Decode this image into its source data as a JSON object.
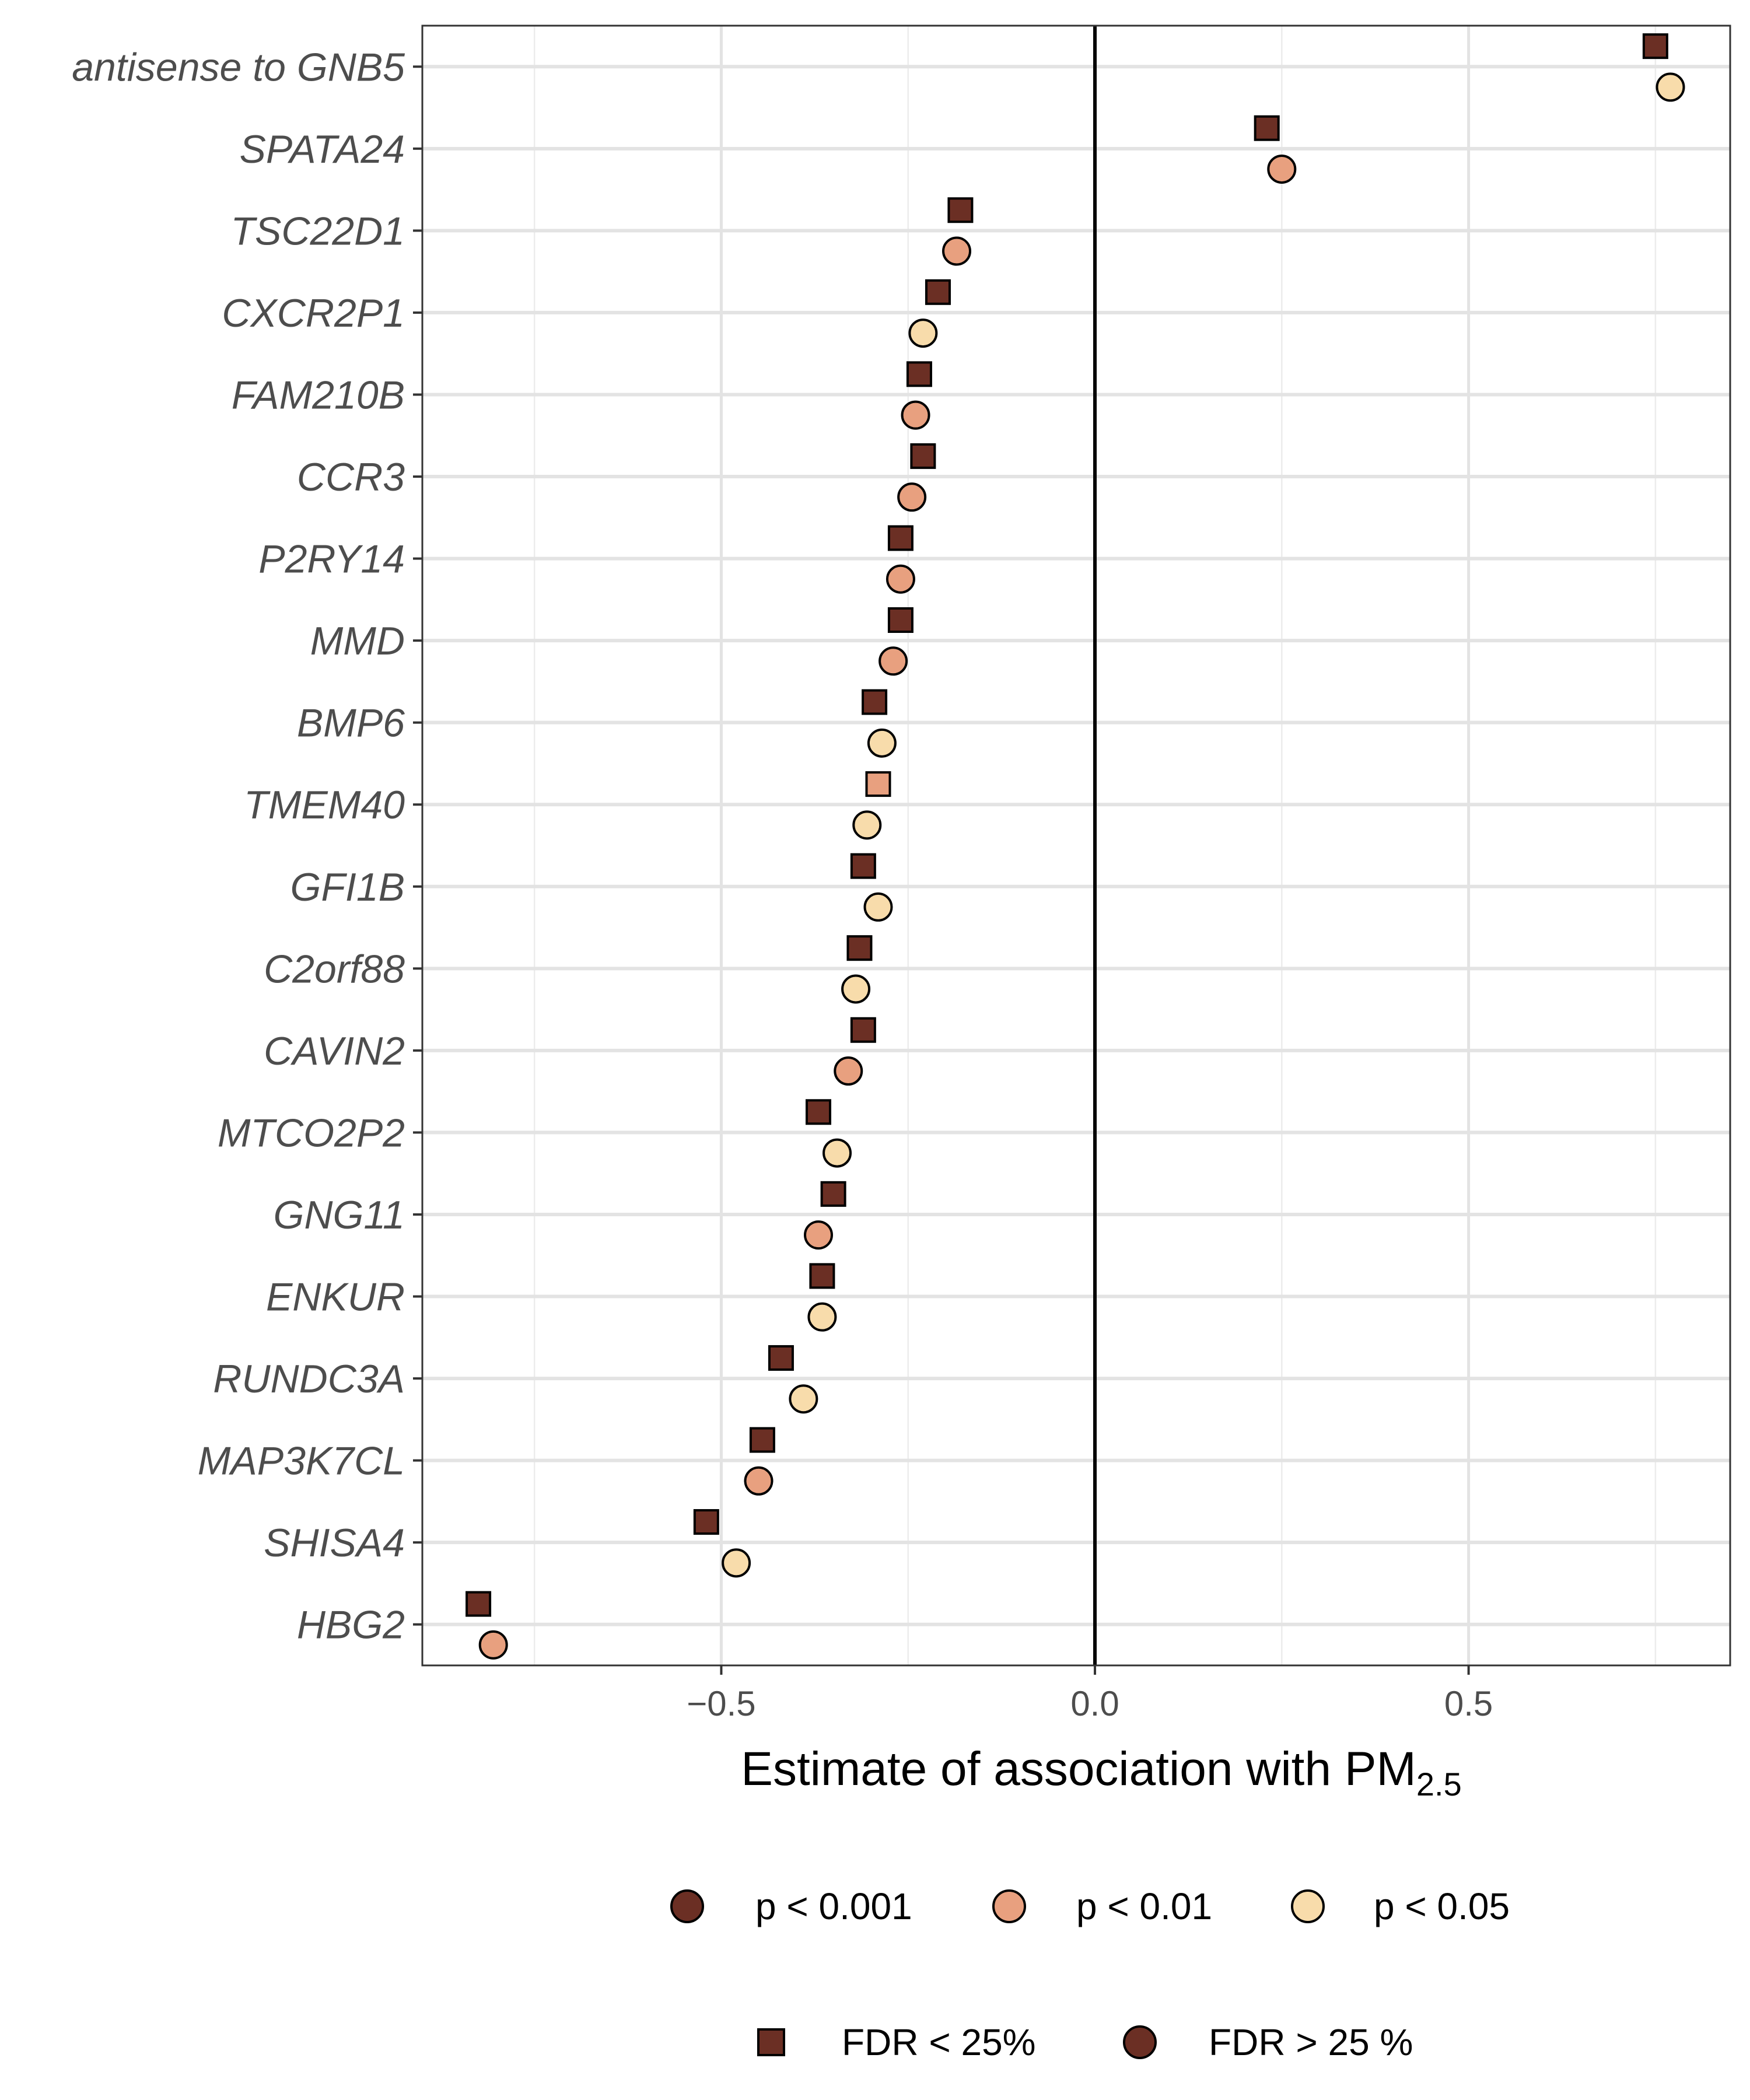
{
  "chart_data": {
    "type": "scatter",
    "xlabel": "Estimate of association with PM",
    "xlabel_subscript": "2.5",
    "xlim": [
      -0.9,
      0.85
    ],
    "x_ticks": [
      -0.5,
      0.0,
      0.5
    ],
    "x_tick_labels": [
      "−0.5",
      "0.0",
      "0.5"
    ],
    "reference_line_x": 0,
    "grid": true,
    "legend_position": "bottom",
    "categories": [
      "antisense to GNB5",
      "SPATA24",
      "TSC22D1",
      "CXCR2P1",
      "FAM210B",
      "CCR3",
      "P2RY14",
      "MMD",
      "BMP6",
      "TMEM40",
      "GFI1B",
      "C2orf88",
      "CAVIN2",
      "MTCO2P2",
      "GNG11",
      "ENKUR",
      "RUNDC3A",
      "MAP3K7CL",
      "SHISA4",
      "HBG2"
    ],
    "series": [
      {
        "name": "FDR < 25%",
        "shape": "square",
        "points": [
          {
            "gene": "antisense to GNB5",
            "x": 0.75,
            "p": "p < 0.001"
          },
          {
            "gene": "SPATA24",
            "x": 0.23,
            "p": "p < 0.001"
          },
          {
            "gene": "TSC22D1",
            "x": -0.18,
            "p": "p < 0.001"
          },
          {
            "gene": "CXCR2P1",
            "x": -0.21,
            "p": "p < 0.001"
          },
          {
            "gene": "FAM210B",
            "x": -0.235,
            "p": "p < 0.001"
          },
          {
            "gene": "CCR3",
            "x": -0.23,
            "p": "p < 0.001"
          },
          {
            "gene": "P2RY14",
            "x": -0.26,
            "p": "p < 0.001"
          },
          {
            "gene": "MMD",
            "x": -0.26,
            "p": "p < 0.001"
          },
          {
            "gene": "BMP6",
            "x": -0.295,
            "p": "p < 0.001"
          },
          {
            "gene": "TMEM40",
            "x": -0.29,
            "p": "p < 0.01"
          },
          {
            "gene": "GFI1B",
            "x": -0.31,
            "p": "p < 0.001"
          },
          {
            "gene": "C2orf88",
            "x": -0.315,
            "p": "p < 0.001"
          },
          {
            "gene": "CAVIN2",
            "x": -0.31,
            "p": "p < 0.001"
          },
          {
            "gene": "MTCO2P2",
            "x": -0.37,
            "p": "p < 0.001"
          },
          {
            "gene": "GNG11",
            "x": -0.35,
            "p": "p < 0.001"
          },
          {
            "gene": "ENKUR",
            "x": -0.365,
            "p": "p < 0.001"
          },
          {
            "gene": "RUNDC3A",
            "x": -0.42,
            "p": "p < 0.001"
          },
          {
            "gene": "MAP3K7CL",
            "x": -0.445,
            "p": "p < 0.001"
          },
          {
            "gene": "SHISA4",
            "x": -0.52,
            "p": "p < 0.001"
          },
          {
            "gene": "HBG2",
            "x": -0.825,
            "p": "p < 0.001"
          }
        ]
      },
      {
        "name": "FDR > 25 %",
        "shape": "circle",
        "points": [
          {
            "gene": "antisense to GNB5",
            "x": 0.77,
            "p": "p < 0.05"
          },
          {
            "gene": "SPATA24",
            "x": 0.25,
            "p": "p < 0.01"
          },
          {
            "gene": "TSC22D1",
            "x": -0.185,
            "p": "p < 0.01"
          },
          {
            "gene": "CXCR2P1",
            "x": -0.23,
            "p": "p < 0.05"
          },
          {
            "gene": "FAM210B",
            "x": -0.24,
            "p": "p < 0.01"
          },
          {
            "gene": "CCR3",
            "x": -0.245,
            "p": "p < 0.01"
          },
          {
            "gene": "P2RY14",
            "x": -0.26,
            "p": "p < 0.01"
          },
          {
            "gene": "MMD",
            "x": -0.27,
            "p": "p < 0.01"
          },
          {
            "gene": "BMP6",
            "x": -0.285,
            "p": "p < 0.05"
          },
          {
            "gene": "TMEM40",
            "x": -0.305,
            "p": "p < 0.05"
          },
          {
            "gene": "GFI1B",
            "x": -0.29,
            "p": "p < 0.05"
          },
          {
            "gene": "C2orf88",
            "x": -0.32,
            "p": "p < 0.05"
          },
          {
            "gene": "CAVIN2",
            "x": -0.33,
            "p": "p < 0.01"
          },
          {
            "gene": "MTCO2P2",
            "x": -0.345,
            "p": "p < 0.05"
          },
          {
            "gene": "GNG11",
            "x": -0.37,
            "p": "p < 0.01"
          },
          {
            "gene": "ENKUR",
            "x": -0.365,
            "p": "p < 0.05"
          },
          {
            "gene": "RUNDC3A",
            "x": -0.39,
            "p": "p < 0.05"
          },
          {
            "gene": "MAP3K7CL",
            "x": -0.45,
            "p": "p < 0.01"
          },
          {
            "gene": "SHISA4",
            "x": -0.48,
            "p": "p < 0.05"
          },
          {
            "gene": "HBG2",
            "x": -0.805,
            "p": "p < 0.01"
          }
        ]
      }
    ],
    "color_legend": [
      {
        "label": "p < 0.001",
        "color": "#6b2f24"
      },
      {
        "label": "p < 0.01",
        "color": "#e8a07f"
      },
      {
        "label": "p < 0.05",
        "color": "#f8dcab"
      }
    ],
    "shape_legend": [
      {
        "label": "FDR < 25%",
        "shape": "square",
        "color": "#6b2f24"
      },
      {
        "label": "FDR > 25 %",
        "shape": "circle",
        "color": "#6b2f24"
      }
    ]
  }
}
